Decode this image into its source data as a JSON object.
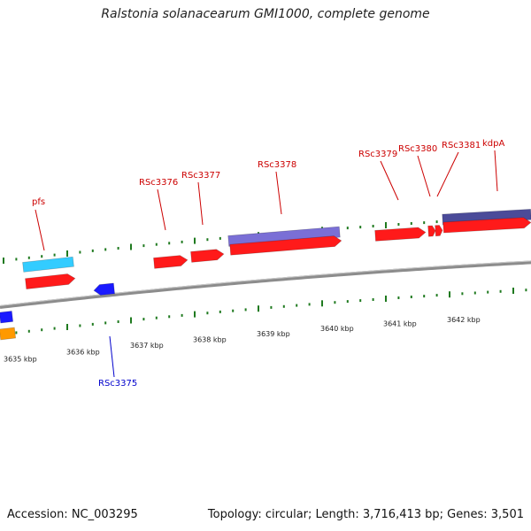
{
  "title": "Ralstonia solanacearum GMI1000, complete genome",
  "footer": {
    "accession": "Accession: NC_003295",
    "stats": "Topology: circular; Length: 3,716,413 bp; Genes: 3,501"
  },
  "ticks": {
    "unit": "kbp",
    "labels": [
      "3635 kbp",
      "3636 kbp",
      "3637 kbp",
      "3638 kbp",
      "3639 kbp",
      "3640 kbp",
      "3641 kbp",
      "3642 kbp"
    ]
  },
  "colors": {
    "backbone": "#8c8c8c",
    "tick": "#1f7a1f",
    "forward_gene": "#ff1a1a",
    "reverse_gene": "#1a1aff",
    "label_forward": "#cc0000",
    "label_reverse": "#0000cc",
    "cyan_feature": "#33ccff",
    "purple_feature": "#7a6fd6",
    "dark_purple_feature": "#4b4b99",
    "orange_feature": "#ff9900"
  },
  "genes": [
    {
      "label": "pfs",
      "strand": "forward"
    },
    {
      "label": "RSc3375",
      "strand": "reverse"
    },
    {
      "label": "RSc3376",
      "strand": "forward"
    },
    {
      "label": "RSc3377",
      "strand": "forward"
    },
    {
      "label": "RSc3378",
      "strand": "forward"
    },
    {
      "label": "RSc3379",
      "strand": "forward"
    },
    {
      "label": "RSc3380",
      "strand": "forward"
    },
    {
      "label": "RSc3381",
      "strand": "forward"
    },
    {
      "label": "kdpA",
      "strand": "forward"
    }
  ]
}
